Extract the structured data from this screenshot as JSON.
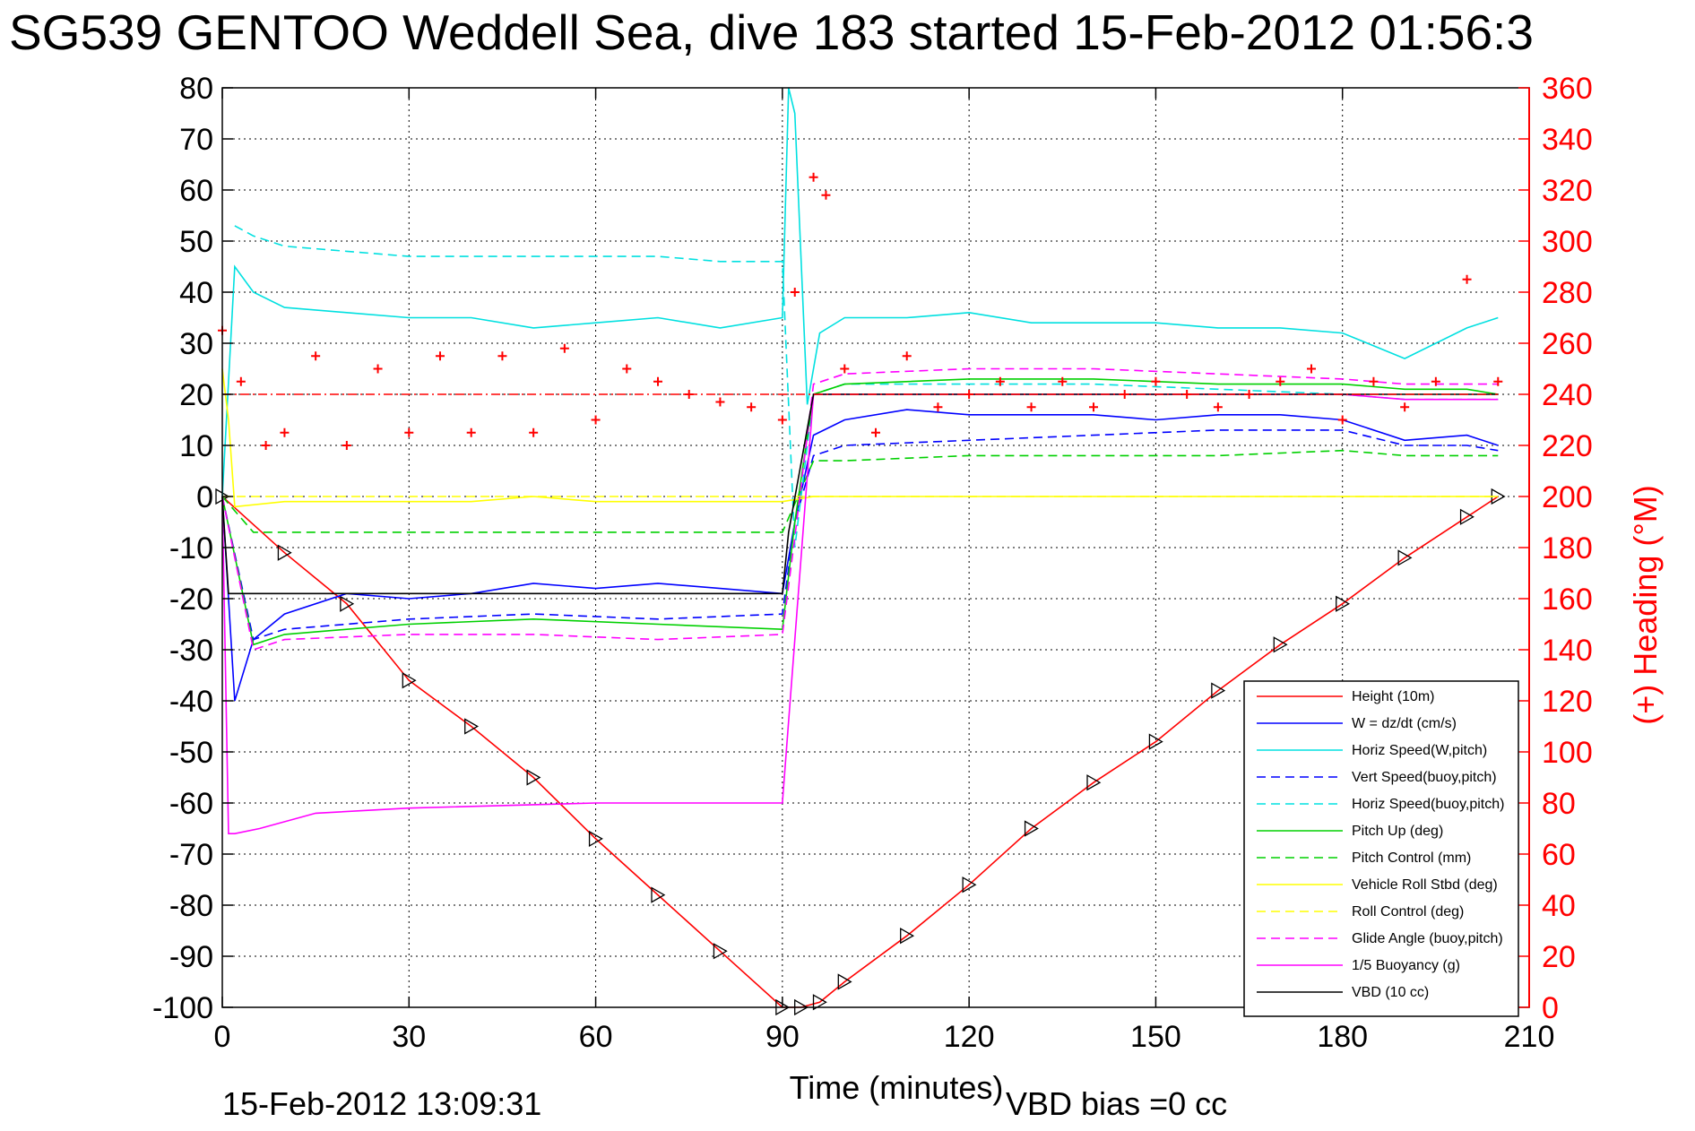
{
  "chart_data": {
    "type": "line",
    "title": "SG539 GENTOO Weddell Sea, dive 183 started 15-Feb-2012 01:56:3",
    "xlabel": "Time (minutes)",
    "ylabel": "",
    "ylabel_right": "(+) Heading (°M)",
    "xlim": [
      0,
      210
    ],
    "ylim": [
      -100,
      80
    ],
    "ylim_right": [
      0,
      360
    ],
    "x_ticks": [
      0,
      30,
      60,
      90,
      120,
      150,
      180,
      210
    ],
    "y_ticks": [
      -100,
      -90,
      -80,
      -70,
      -60,
      -50,
      -40,
      -30,
      -20,
      -10,
      0,
      10,
      20,
      30,
      40,
      50,
      60,
      70,
      80
    ],
    "y_ticks_right": [
      0,
      20,
      40,
      60,
      80,
      100,
      120,
      140,
      160,
      180,
      200,
      220,
      240,
      260,
      280,
      300,
      320,
      340,
      360
    ],
    "grid": true,
    "legend_position": "bottom-right",
    "footer_left": "15-Feb-2012 13:09:31",
    "footer_right": "VBD bias =0 cc",
    "series": [
      {
        "name": "Height (10m)",
        "color": "#ff0000",
        "style": "solid",
        "marker": "triangle",
        "x": [
          0,
          10,
          20,
          30,
          40,
          50,
          60,
          70,
          80,
          90,
          93,
          96,
          100,
          110,
          120,
          130,
          140,
          150,
          160,
          170,
          180,
          190,
          200,
          205
        ],
        "y": [
          0,
          -11,
          -21,
          -36,
          -45,
          -55,
          -67,
          -78,
          -89,
          -100,
          -100,
          -99,
          -95,
          -86,
          -76,
          -65,
          -56,
          -48,
          -38,
          -29,
          -21,
          -12,
          -4,
          0
        ]
      },
      {
        "name": "W = dz/dt (cm/s)",
        "color": "#0000ff",
        "style": "solid",
        "x": [
          0,
          2,
          5,
          10,
          20,
          30,
          40,
          50,
          60,
          70,
          80,
          90,
          92,
          95,
          100,
          110,
          120,
          130,
          140,
          150,
          160,
          170,
          180,
          190,
          200,
          205
        ],
        "y": [
          0,
          -40,
          -28,
          -23,
          -19,
          -20,
          -19,
          -17,
          -18,
          -17,
          -18,
          -19,
          -5,
          12,
          15,
          17,
          16,
          16,
          16,
          15,
          16,
          16,
          15,
          11,
          12,
          10
        ]
      },
      {
        "name": "Horiz Speed(W,pitch)",
        "color": "#00e0e0",
        "style": "solid",
        "x": [
          0,
          2,
          5,
          10,
          20,
          30,
          40,
          50,
          60,
          70,
          80,
          90,
          91,
          92,
          94,
          96,
          100,
          110,
          120,
          130,
          140,
          150,
          160,
          170,
          180,
          190,
          200,
          205
        ],
        "y": [
          0,
          45,
          40,
          37,
          36,
          35,
          35,
          33,
          34,
          35,
          33,
          35,
          80,
          75,
          18,
          32,
          35,
          35,
          36,
          34,
          34,
          34,
          33,
          33,
          32,
          27,
          33,
          35
        ]
      },
      {
        "name": "Vert Speed(buoy,pitch)",
        "color": "#0000ff",
        "style": "dashed",
        "x": [
          0,
          5,
          10,
          30,
          50,
          70,
          90,
          92,
          95,
          100,
          120,
          140,
          160,
          180,
          190,
          200,
          205
        ],
        "y": [
          0,
          -28,
          -26,
          -24,
          -23,
          -24,
          -23,
          -5,
          8,
          10,
          11,
          12,
          13,
          13,
          10,
          10,
          9
        ]
      },
      {
        "name": "Horiz Speed(buoy,pitch)",
        "color": "#00e0e0",
        "style": "dashed",
        "x": [
          2,
          5,
          10,
          20,
          30,
          40,
          50,
          60,
          70,
          80,
          90,
          92,
          95,
          100,
          120,
          140,
          160,
          180,
          190,
          200,
          205
        ],
        "y": [
          53,
          51,
          49,
          48,
          47,
          47,
          47,
          47,
          47,
          46,
          46,
          -10,
          20,
          22,
          22,
          22,
          21,
          20,
          19,
          19,
          19
        ]
      },
      {
        "name": "Pitch Up (deg)",
        "color": "#00d000",
        "style": "solid",
        "x": [
          0,
          5,
          10,
          30,
          50,
          70,
          90,
          92,
          95,
          100,
          120,
          140,
          160,
          180,
          190,
          200,
          205
        ],
        "y": [
          0,
          -29,
          -27,
          -25,
          -24,
          -25,
          -26,
          -5,
          20,
          22,
          23,
          23,
          22,
          22,
          21,
          21,
          20
        ]
      },
      {
        "name": "Pitch Control (mm)",
        "color": "#00d000",
        "style": "dashed",
        "x": [
          0,
          5,
          10,
          30,
          50,
          70,
          90,
          95,
          100,
          120,
          140,
          160,
          180,
          190,
          200,
          205
        ],
        "y": [
          0,
          -7,
          -7,
          -7,
          -7,
          -7,
          -7,
          7,
          7,
          8,
          8,
          8,
          9,
          8,
          8,
          8
        ]
      },
      {
        "name": "Vehicle Roll Stbd (deg)",
        "color": "#ffff00",
        "style": "solid",
        "x": [
          0,
          1,
          2,
          10,
          20,
          30,
          40,
          50,
          60,
          70,
          80,
          90,
          95,
          100,
          120,
          140,
          160,
          180,
          190,
          200,
          205
        ],
        "y": [
          25,
          15,
          -2,
          -1,
          -1,
          -1,
          -1,
          0,
          -1,
          -1,
          -1,
          -1,
          0,
          0,
          0,
          0,
          0,
          0,
          0,
          0,
          0
        ]
      },
      {
        "name": "Roll Control (deg)",
        "color": "#ffff00",
        "style": "dashed",
        "x": [
          0,
          2,
          10,
          50,
          90,
          95,
          120,
          160,
          200,
          205
        ],
        "y": [
          0,
          0,
          0,
          0,
          0,
          0,
          0,
          0,
          0,
          0
        ]
      },
      {
        "name": "Glide Angle (buoy,pitch)",
        "color": "#ff00ff",
        "style": "dashed",
        "x": [
          0,
          5,
          10,
          30,
          50,
          70,
          90,
          92,
          95,
          100,
          120,
          140,
          160,
          180,
          190,
          200,
          205
        ],
        "y": [
          0,
          -30,
          -28,
          -27,
          -27,
          -28,
          -27,
          -8,
          22,
          24,
          25,
          25,
          24,
          23,
          22,
          22,
          22
        ]
      },
      {
        "name": "1/5 Buoyancy (g)",
        "color": "#ff00ff",
        "style": "solid",
        "x": [
          0,
          1,
          2,
          6,
          15,
          30,
          60,
          90,
          95,
          100,
          120,
          140,
          160,
          180,
          190,
          200,
          205
        ],
        "y": [
          0,
          -66,
          -66,
          -65,
          -62,
          -61,
          -60,
          -60,
          20,
          20,
          20,
          20,
          20,
          20,
          19,
          19,
          19
        ]
      },
      {
        "name": "VBD (10 cc)",
        "color": "#000000",
        "style": "solid",
        "x": [
          0,
          1,
          2,
          90,
          91,
          95,
          205
        ],
        "y": [
          0,
          -19,
          -19,
          -19,
          -7,
          20,
          20
        ]
      },
      {
        "name": "Heading (°M)",
        "color": "#ff0000",
        "style": "plus",
        "axis": "right",
        "x": [
          0,
          3,
          7,
          10,
          15,
          20,
          25,
          30,
          35,
          40,
          45,
          50,
          55,
          60,
          65,
          70,
          75,
          80,
          85,
          90,
          92,
          95,
          97,
          100,
          105,
          110,
          115,
          120,
          125,
          130,
          135,
          140,
          145,
          150,
          155,
          160,
          165,
          170,
          175,
          180,
          185,
          190,
          195,
          200,
          205
        ],
        "y": [
          265,
          245,
          220,
          225,
          255,
          220,
          250,
          225,
          255,
          225,
          255,
          225,
          258,
          230,
          250,
          245,
          240,
          237,
          235,
          230,
          280,
          325,
          318,
          250,
          225,
          255,
          235,
          240,
          245,
          235,
          245,
          235,
          240,
          245,
          240,
          235,
          240,
          245,
          250,
          230,
          245,
          235,
          245,
          285,
          245
        ]
      },
      {
        "name": "",
        "color": "#ff0000",
        "style": "dashdot",
        "axis": "right",
        "x": [
          0,
          205
        ],
        "y": [
          240,
          240
        ]
      }
    ]
  }
}
